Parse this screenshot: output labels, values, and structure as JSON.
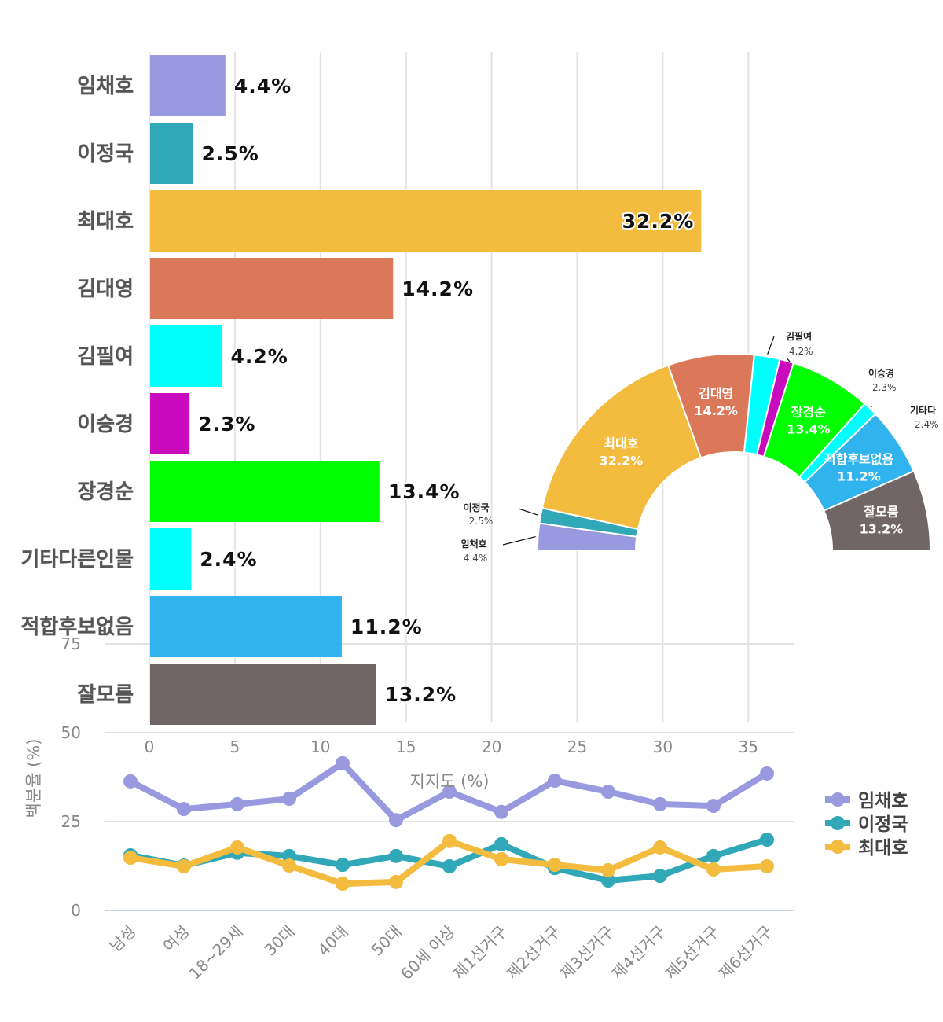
{
  "chart_data": [
    {
      "type": "bar",
      "orientation": "horizontal",
      "categories": [
        "임채호",
        "이정국",
        "최대호",
        "김대영",
        "김필여",
        "이승경",
        "장경순",
        "기타다른인물",
        "적합후보없음",
        "잘모름"
      ],
      "values": [
        4.4,
        2.5,
        32.2,
        14.2,
        4.2,
        2.3,
        13.4,
        2.4,
        11.2,
        13.2
      ],
      "value_labels": [
        "4.4%",
        "2.5%",
        "32.2%",
        "14.2%",
        "4.2%",
        "2.3%",
        "13.4%",
        "2.4%",
        "11.2%",
        "13.2%"
      ],
      "colors": [
        "#9999e0",
        "#31a8b8",
        "#f4bc3f",
        "#dc785a",
        "#00ffff",
        "#c90bbd",
        "#00ff00",
        "#00ffff",
        "#31b3ee",
        "#706665"
      ],
      "xlabel": "지지도 (%)",
      "xticks": [
        "0",
        "5",
        "10",
        "15",
        "20",
        "25",
        "30",
        "35"
      ],
      "xlim": [
        0,
        37
      ],
      "grid": true
    },
    {
      "type": "pie",
      "shape": "half-donut",
      "labels": [
        "임채호",
        "이정국",
        "최대호",
        "김대영",
        "김필여",
        "이승경",
        "장경순",
        "기타다",
        "적합후보없음",
        "잘모름"
      ],
      "values": [
        4.4,
        2.5,
        32.2,
        14.2,
        4.2,
        2.3,
        13.4,
        2.4,
        11.2,
        13.2
      ],
      "value_labels": [
        "4.4%",
        "2.5%",
        "32.2%",
        "14.2%",
        "4.2%",
        "2.3%",
        "13.4%",
        "2.4%",
        "11.2%",
        "13.2%"
      ],
      "colors": [
        "#9999e0",
        "#31a8b8",
        "#f4bc3f",
        "#dc785a",
        "#00ffff",
        "#c90bbd",
        "#00ff00",
        "#00ffff",
        "#31b3ee",
        "#706665"
      ]
    },
    {
      "type": "line",
      "x": [
        "남성",
        "여성",
        "18~29세",
        "30대",
        "40대",
        "50대",
        "60세 이상",
        "제1선거구",
        "제2선거구",
        "제3선거구",
        "제4선거구",
        "제5선거구",
        "제6선거구"
      ],
      "series": [
        {
          "name": "임채호",
          "color": "#9999e0",
          "values": [
            36.3,
            28.5,
            29.9,
            31.4,
            41.4,
            25.4,
            33.4,
            27.7,
            36.5,
            33.4,
            29.9,
            29.4,
            38.5
          ]
        },
        {
          "name": "이정국",
          "color": "#31a8b8",
          "values": [
            15.5,
            12.6,
            16.2,
            15.3,
            12.8,
            15.3,
            12.4,
            18.6,
            11.9,
            8.4,
            9.7,
            15.3,
            19.9
          ]
        },
        {
          "name": "최대호",
          "color": "#f4bc3f",
          "values": [
            14.8,
            12.4,
            17.7,
            12.6,
            7.5,
            8.0,
            19.5,
            14.4,
            12.8,
            11.3,
            17.7,
            11.5,
            12.4
          ]
        }
      ],
      "ylabel": "백분율 (%)",
      "yticks": [
        "0",
        "25",
        "50",
        "75"
      ],
      "ylim": [
        0,
        50
      ],
      "legend": "right",
      "grid": true
    }
  ]
}
